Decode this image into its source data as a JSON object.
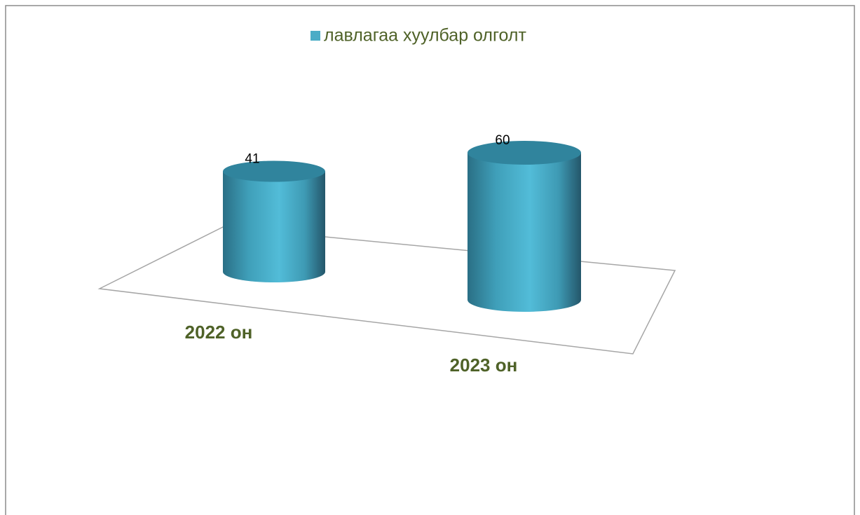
{
  "chart_data": {
    "type": "bar",
    "categories": [
      "2022 он",
      "2023 он"
    ],
    "series": [
      {
        "name": "лавлагаа хуулбар олголт",
        "color": "#4bacc6",
        "values": [
          41,
          60
        ]
      }
    ]
  }
}
